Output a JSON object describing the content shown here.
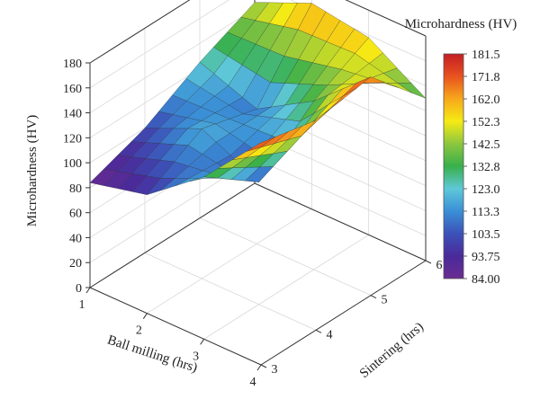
{
  "chart_data": {
    "type": "surface",
    "xlabel": "Ball milling (hrs)",
    "ylabel": "Sintering (hrs)",
    "zlabel": "Microhardness (HV)",
    "x_ticks": [
      "1",
      "2",
      "3",
      "4"
    ],
    "y_ticks": [
      "3",
      "4",
      "5",
      "6"
    ],
    "z_ticks": [
      "0",
      "20",
      "40",
      "60",
      "80",
      "100",
      "120",
      "140",
      "160",
      "180"
    ],
    "xlim": [
      1,
      4
    ],
    "ylim": [
      3,
      6
    ],
    "zlim": [
      0,
      180
    ],
    "x": [
      1,
      2,
      3,
      4
    ],
    "y": [
      3,
      4,
      5,
      6
    ],
    "z": [
      [
        84,
        95,
        130,
        178
      ],
      [
        100,
        120,
        98,
        168
      ],
      [
        125,
        108,
        135,
        175
      ],
      [
        145,
        165,
        158,
        130
      ]
    ],
    "colorbar": {
      "title": "Microhardness (HV)",
      "ticks": [
        "181.5",
        "171.8",
        "162.0",
        "152.3",
        "142.5",
        "132.8",
        "123.0",
        "113.3",
        "103.5",
        "93.75",
        "84.00"
      ],
      "min": 84.0,
      "max": 181.5
    }
  }
}
